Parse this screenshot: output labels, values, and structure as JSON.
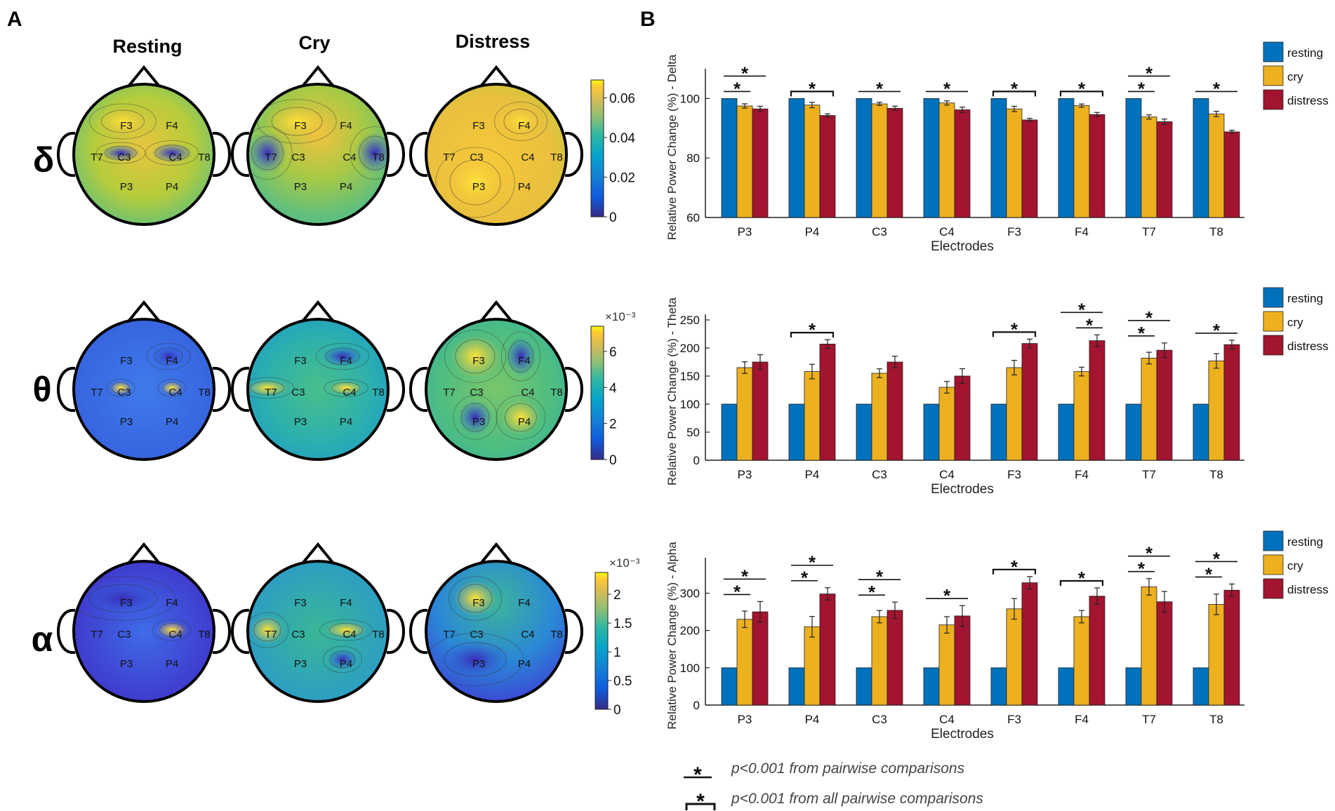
{
  "panel_labels": {
    "a": "A",
    "b": "B"
  },
  "topo": {
    "conditions": [
      "Resting",
      "Cry",
      "Distress"
    ],
    "band_symbols": [
      "δ",
      "θ",
      "α"
    ],
    "electrodes": [
      "F3",
      "F4",
      "T7",
      "C3",
      "C4",
      "T8",
      "P3",
      "P4"
    ],
    "colorbars": [
      {
        "ticks": [
          "0",
          "0.02",
          "0.04",
          "0.06"
        ],
        "exponent": ""
      },
      {
        "ticks": [
          "0",
          "2",
          "4",
          "6"
        ],
        "exponent": "×10⁻³"
      },
      {
        "ticks": [
          "0",
          "0.5",
          "1",
          "1.5",
          "2"
        ],
        "exponent": "×10⁻³"
      }
    ]
  },
  "colors": {
    "resting": "#0072BD",
    "cry": "#EDB120",
    "distress": "#A2142F"
  },
  "chart_data": [
    {
      "type": "bar",
      "title": "Delta",
      "ylabel": "Relative Power Change (%) - Delta",
      "xlabel": "Electrodes",
      "ylim": [
        60,
        110
      ],
      "yticks": [
        "60",
        "80",
        "100"
      ],
      "categories": [
        "P3",
        "P4",
        "C3",
        "C4",
        "F3",
        "F4",
        "T7",
        "T8"
      ],
      "legend": [
        "resting",
        "cry",
        "distress"
      ],
      "series": [
        {
          "name": "resting",
          "values": [
            100,
            100,
            100,
            100,
            100,
            100,
            100,
            100
          ]
        },
        {
          "name": "cry",
          "values": [
            97.5,
            97.8,
            98.2,
            98.5,
            96.5,
            97.6,
            93.8,
            94.8
          ]
        },
        {
          "name": "distress",
          "values": [
            96.5,
            94.3,
            96.7,
            96.2,
            92.8,
            94.6,
            92.2,
            88.8
          ]
        }
      ]
    },
    {
      "type": "bar",
      "title": "Theta",
      "ylabel": "Relative Power Change (%) - Theta",
      "xlabel": "Electrodes",
      "ylim": [
        0,
        260
      ],
      "yticks": [
        "0",
        "50",
        "100",
        "150",
        "200",
        "250"
      ],
      "categories": [
        "P3",
        "P4",
        "C3",
        "C4",
        "F3",
        "F4",
        "T7",
        "T8"
      ],
      "legend": [
        "resting",
        "cry",
        "distress"
      ],
      "series": [
        {
          "name": "resting",
          "values": [
            100,
            100,
            100,
            100,
            100,
            100,
            100,
            100
          ]
        },
        {
          "name": "cry",
          "values": [
            165,
            158,
            155,
            130,
            165,
            158,
            182,
            177
          ]
        },
        {
          "name": "distress",
          "values": [
            175,
            207,
            175,
            150,
            208,
            213,
            196,
            206
          ]
        }
      ]
    },
    {
      "type": "bar",
      "title": "Alpha",
      "ylabel": "Relative Power Change (%) - Alpha",
      "xlabel": "Electrodes",
      "ylim": [
        0,
        395
      ],
      "yticks": [
        "0",
        "100",
        "200",
        "300"
      ],
      "categories": [
        "P3",
        "P4",
        "C3",
        "C4",
        "F3",
        "F4",
        "T7",
        "T8"
      ],
      "legend": [
        "resting",
        "cry",
        "distress"
      ],
      "series": [
        {
          "name": "resting",
          "values": [
            100,
            100,
            100,
            100,
            100,
            100,
            100,
            100
          ]
        },
        {
          "name": "cry",
          "values": [
            230,
            210,
            237,
            215,
            258,
            237,
            317,
            270
          ]
        },
        {
          "name": "distress",
          "values": [
            250,
            298,
            254,
            239,
            328,
            292,
            277,
            308
          ]
        }
      ]
    }
  ],
  "significance_legend": {
    "pairwise": "p<0.001 from pairwise comparisons",
    "all_pairwise": "p<0.001 from all pairwise comparisons",
    "star": "*"
  }
}
